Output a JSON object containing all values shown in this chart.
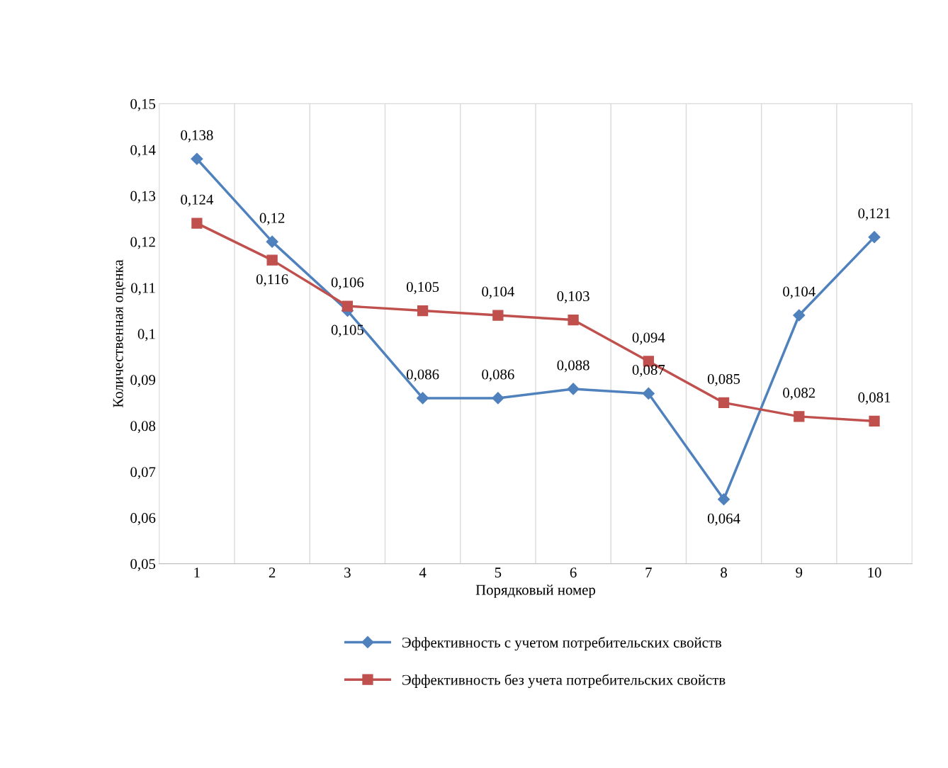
{
  "chart_data": {
    "type": "line",
    "xlabel": "Порядковый номер",
    "ylabel": "Количественная оценка",
    "categories": [
      "1",
      "2",
      "3",
      "4",
      "5",
      "6",
      "7",
      "8",
      "9",
      "10"
    ],
    "series": [
      {
        "name": "Эффективность с учетом потребительских свойств",
        "color": "#4f81bd",
        "marker": "diamond",
        "values": [
          0.138,
          0.12,
          0.105,
          0.086,
          0.086,
          0.088,
          0.087,
          0.064,
          0.104,
          0.121
        ],
        "value_labels": [
          "0,138",
          "0,12",
          "0,105",
          "0,086",
          "0,086",
          "0,088",
          "0,087",
          "0,064",
          "0,104",
          "0,121"
        ]
      },
      {
        "name": "Эффективность без учета потребительских свойств",
        "color": "#c0504d",
        "marker": "square",
        "values": [
          0.124,
          0.116,
          0.106,
          0.105,
          0.104,
          0.103,
          0.094,
          0.085,
          0.082,
          0.081
        ],
        "value_labels": [
          "0,124",
          "0,116",
          "0,106",
          "0,105",
          "0,104",
          "0,103",
          "0,094",
          "0,085",
          "0,082",
          "0,081"
        ]
      }
    ],
    "ylim": [
      0.05,
      0.15
    ],
    "yticks": [
      {
        "value": 0.05,
        "label": "0,05"
      },
      {
        "value": 0.06,
        "label": "0,06"
      },
      {
        "value": 0.07,
        "label": "0,07"
      },
      {
        "value": 0.08,
        "label": "0,08"
      },
      {
        "value": 0.09,
        "label": "0,09"
      },
      {
        "value": 0.1,
        "label": "0,1"
      },
      {
        "value": 0.11,
        "label": "0,11"
      },
      {
        "value": 0.12,
        "label": "0,12"
      },
      {
        "value": 0.13,
        "label": "0,13"
      },
      {
        "value": 0.14,
        "label": "0,14"
      },
      {
        "value": 0.15,
        "label": "0,15"
      }
    ],
    "grid": "x",
    "legend": "bottom",
    "line_style": "solid"
  }
}
